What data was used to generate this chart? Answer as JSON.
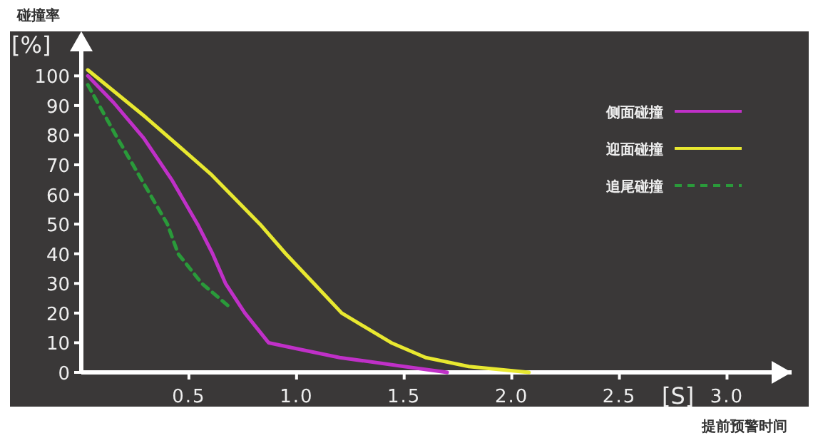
{
  "chart_data": {
    "type": "line",
    "ylabel": "碰撞率",
    "xlabel": "提前预警时间",
    "annotations": [
      "[%]",
      "[S]"
    ],
    "xlim": [
      0,
      3.3
    ],
    "ylim": [
      0,
      115
    ],
    "xticks": [
      0.5,
      {
        "value": 1,
        "label": "1.0"
      },
      1.5,
      {
        "value": 2,
        "label": "2.0"
      },
      2.5,
      {
        "value": 3,
        "label": "3.0"
      }
    ],
    "yticks": [
      0,
      10,
      20,
      30,
      40,
      50,
      60,
      70,
      80,
      90,
      100
    ],
    "legend": "top right",
    "grid": false,
    "series": [
      {
        "name": "侧面碰撞",
        "color": "#c030c8",
        "line_style": "solid",
        "x": [
          0.03,
          0.15,
          0.29,
          0.42,
          0.54,
          0.61,
          0.67,
          0.76,
          0.87,
          1.0,
          1.2,
          1.5,
          1.7
        ],
        "values": [
          100,
          91,
          79,
          65,
          50,
          40,
          30,
          20,
          10,
          8,
          5,
          2,
          0
        ]
      },
      {
        "name": "迎面碰撞",
        "color": "#e8e830",
        "line_style": "solid",
        "x": [
          0.03,
          0.3,
          0.6,
          0.83,
          0.95,
          1.08,
          1.21,
          1.44,
          1.6,
          1.8,
          2.08
        ],
        "values": [
          102,
          86,
          67,
          50,
          40,
          30,
          20,
          10,
          5,
          2,
          0
        ]
      },
      {
        "name": "追尾碰撞",
        "color": "#2a9a3a",
        "line_style": "dashed",
        "x": [
          0.03,
          0.16,
          0.28,
          0.4,
          0.45,
          0.56,
          0.69
        ],
        "values": [
          97,
          80,
          65,
          50,
          40,
          30,
          22
        ]
      }
    ]
  }
}
